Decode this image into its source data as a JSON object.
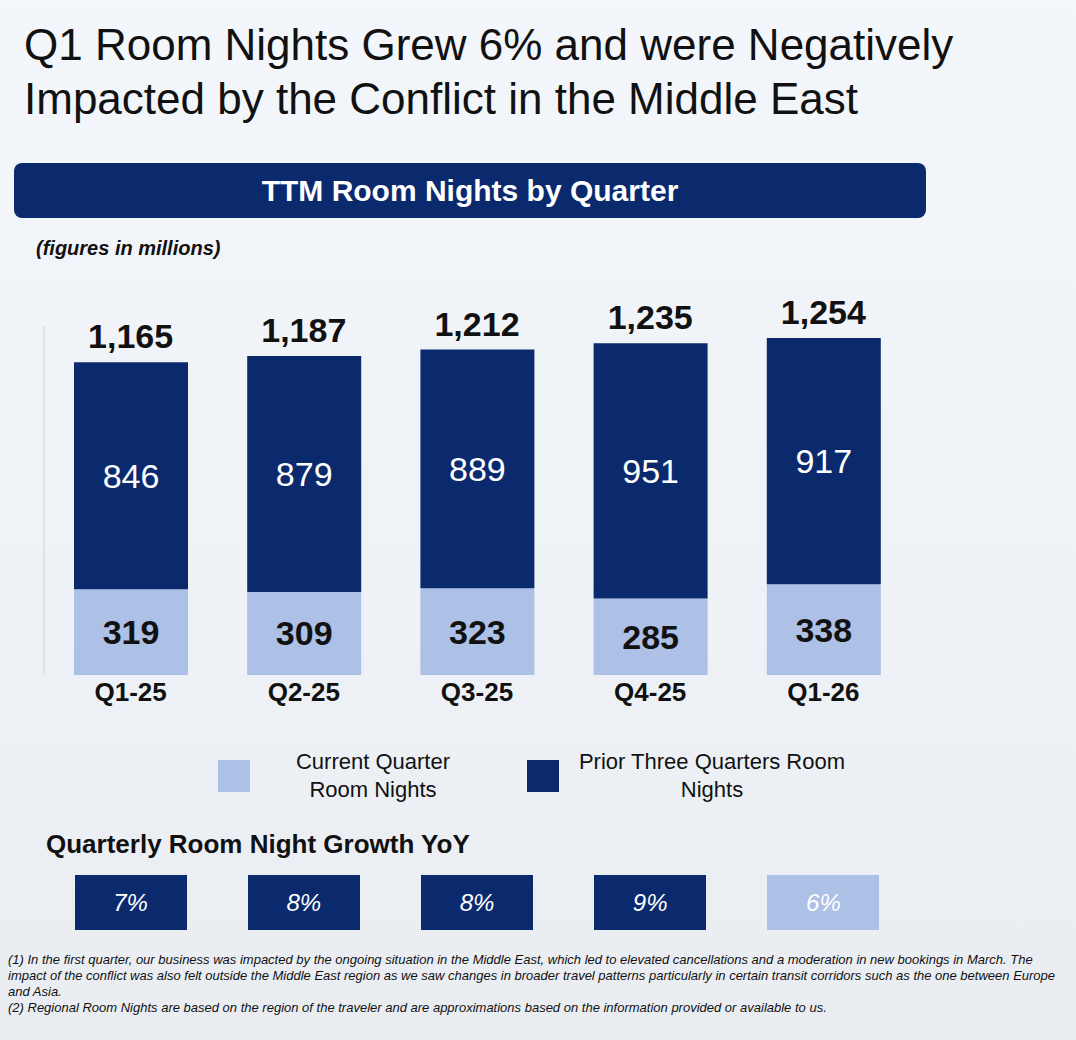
{
  "title": "Q1 Room Nights Grew 6% and were Negatively Impacted by the Conflict in the Middle East",
  "chart_data": {
    "type": "bar",
    "title": "TTM Room Nights by Quarter",
    "subtitle": "(figures in millions)",
    "categories": [
      "Q1-25",
      "Q2-25",
      "Q3-25",
      "Q4-25",
      "Q1-26"
    ],
    "series": [
      {
        "name": "Current Quarter Room Nights",
        "color": "#adc0e6",
        "values": [
          319,
          309,
          323,
          285,
          338
        ]
      },
      {
        "name": "Prior Three Quarters Room Nights",
        "color": "#0b2a6e",
        "values": [
          846,
          879,
          889,
          951,
          917
        ]
      }
    ],
    "stacked": true,
    "data_labels": true,
    "ylim": [
      0,
      1300
    ],
    "tick_labels": "x",
    "legend": "bottom",
    "totals": {
      "values": [
        1165,
        1187,
        1212,
        1235,
        1254
      ],
      "value_labels": [
        "1,165",
        "1,187",
        "1,212",
        "1,235",
        "1,254"
      ]
    },
    "growth": {
      "title": "Quarterly Room Night Growth YoY",
      "values": [
        7,
        8,
        8,
        9,
        6
      ],
      "value_labels": [
        "7%",
        "8%",
        "8%",
        "9%",
        "6%"
      ],
      "colors": [
        "#0b2a6e",
        "#0b2a6e",
        "#0b2a6e",
        "#0b2a6e",
        "#adc0e6"
      ]
    }
  },
  "footnotes": [
    "(1) In the first quarter, our business was impacted by the ongoing situation in the Middle East, which led to elevated cancellations and a moderation in new bookings in March. The impact of the conflict was also felt outside the Middle East region as we saw changes in broader travel patterns particularly in certain transit corridors such as the one between Europe and Asia.",
    "(2) Regional Room Nights are based on the region of the traveler and are approximations based on the information provided or available to us."
  ]
}
